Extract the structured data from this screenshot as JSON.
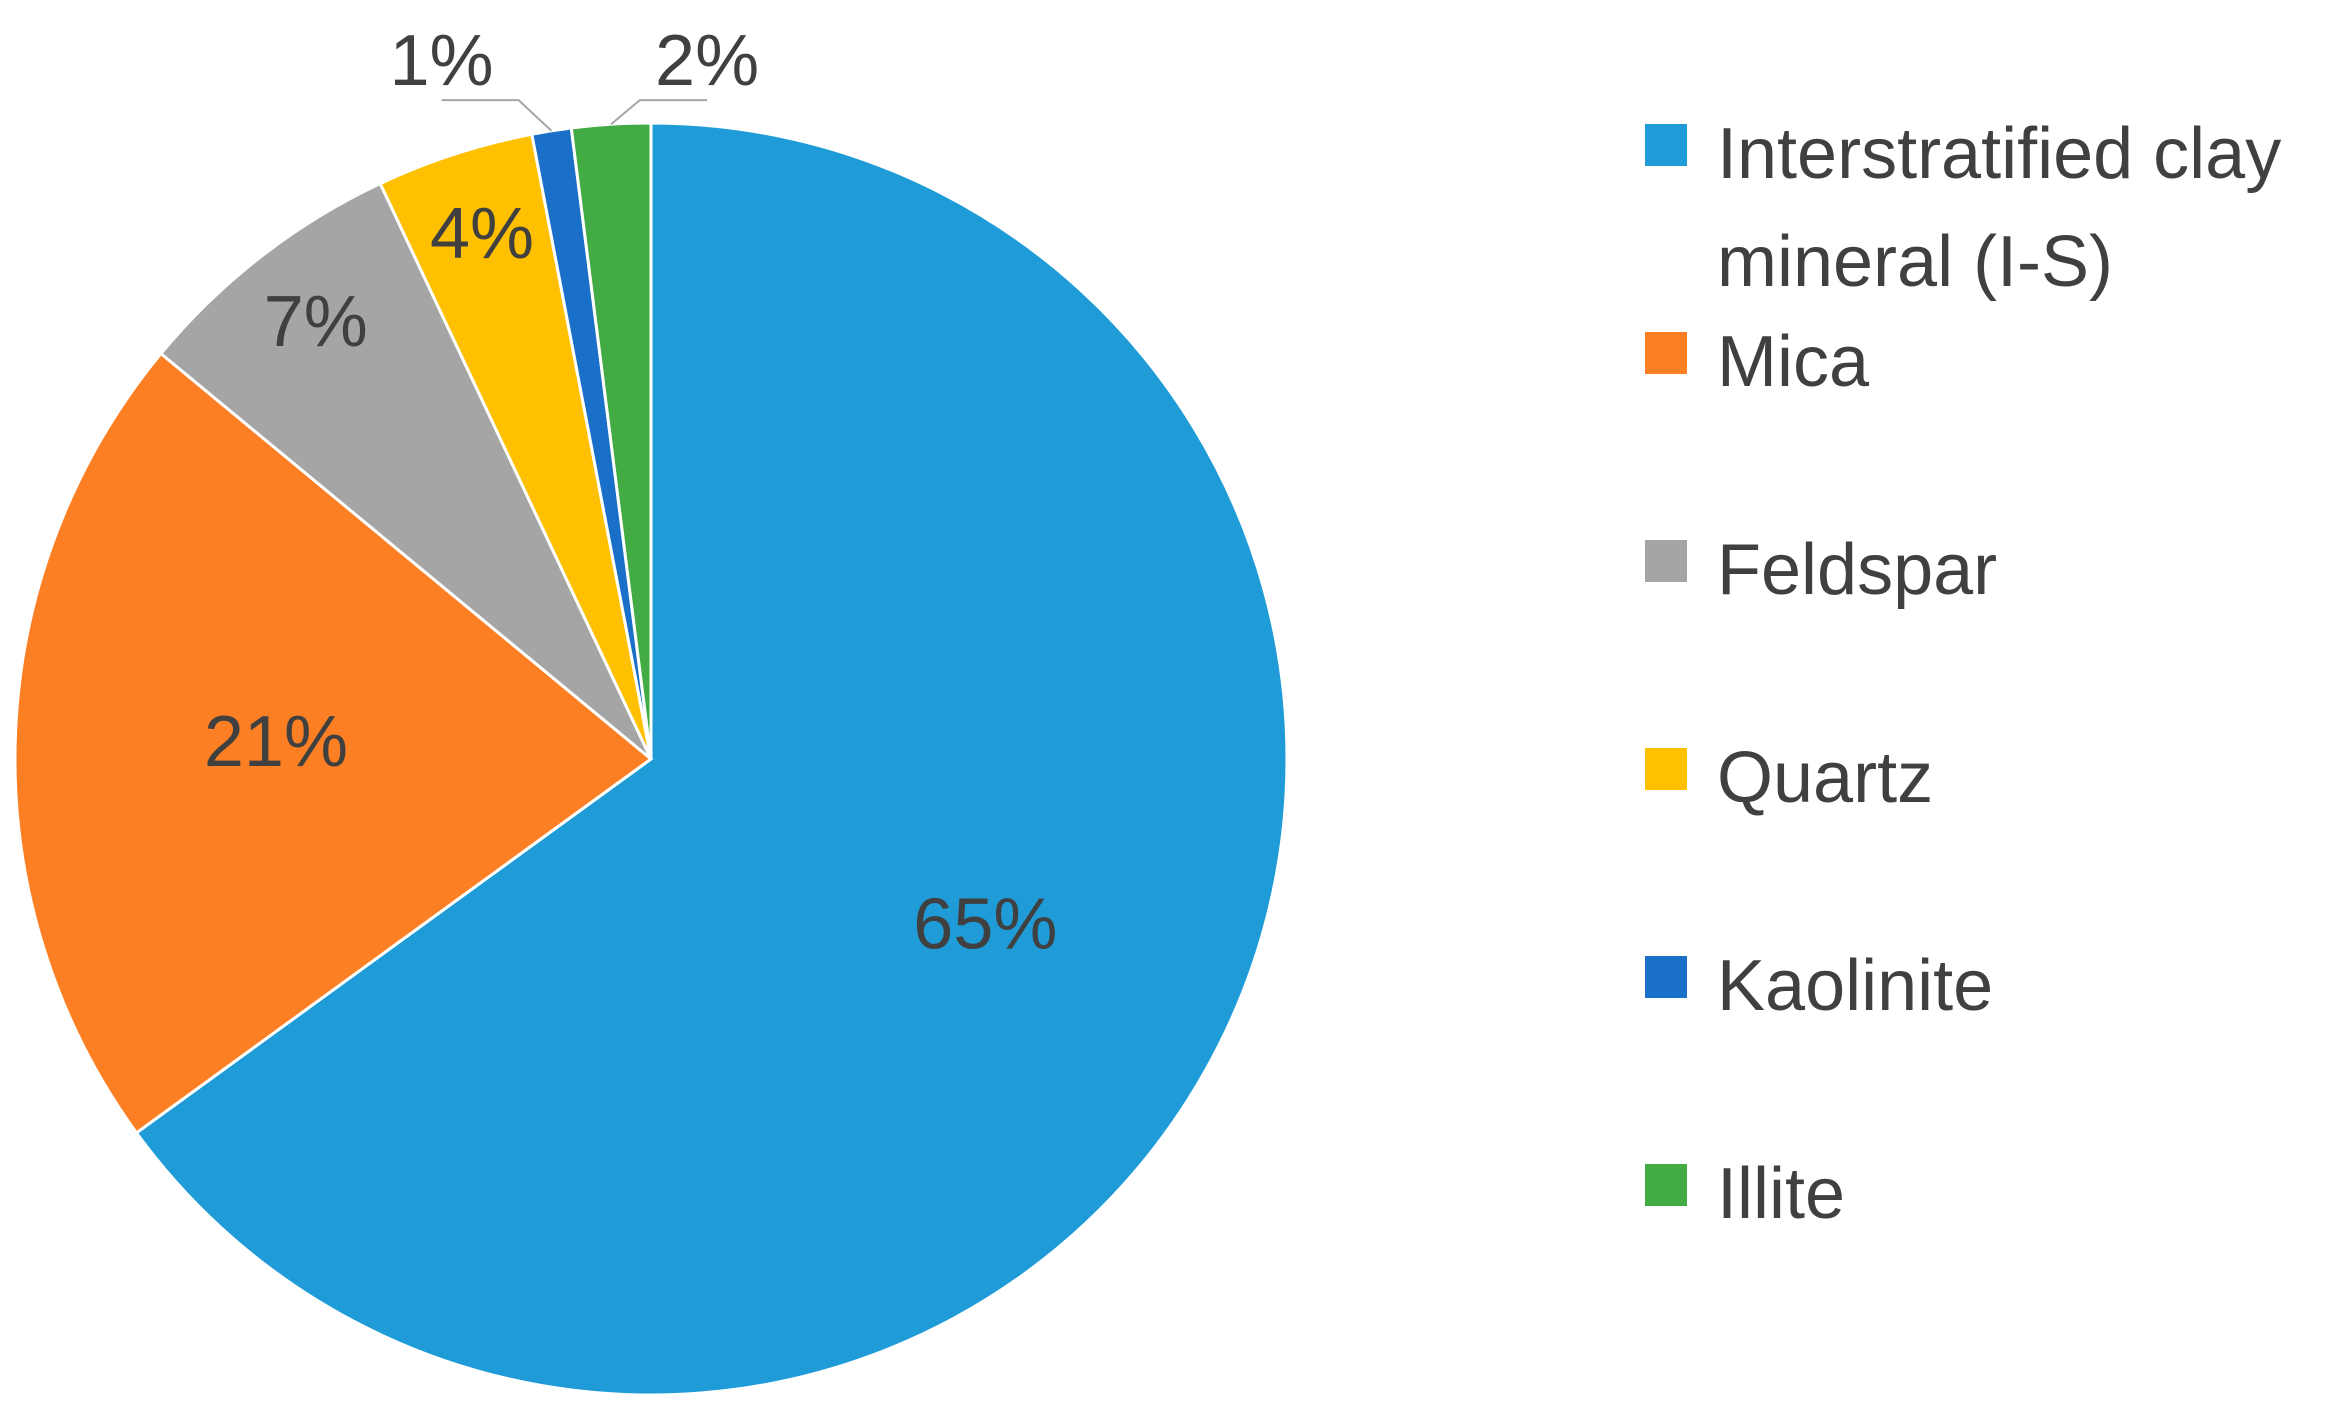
{
  "chart_data": {
    "type": "pie",
    "categories": [
      "Interstratified clay mineral (I-S)",
      "Mica",
      "Feldspar",
      "Quartz",
      "Kaolinite",
      "Illite"
    ],
    "values": [
      65,
      21,
      7,
      4,
      1,
      2
    ],
    "value_labels": [
      "65%",
      "21%",
      "7%",
      "4%",
      "1%",
      "2%"
    ],
    "colors": [
      "#1f9cd8",
      "#fd7f23",
      "#a5a5a5",
      "#ffc000",
      "#1a70c8",
      "#43ab43"
    ],
    "legend": "right"
  }
}
